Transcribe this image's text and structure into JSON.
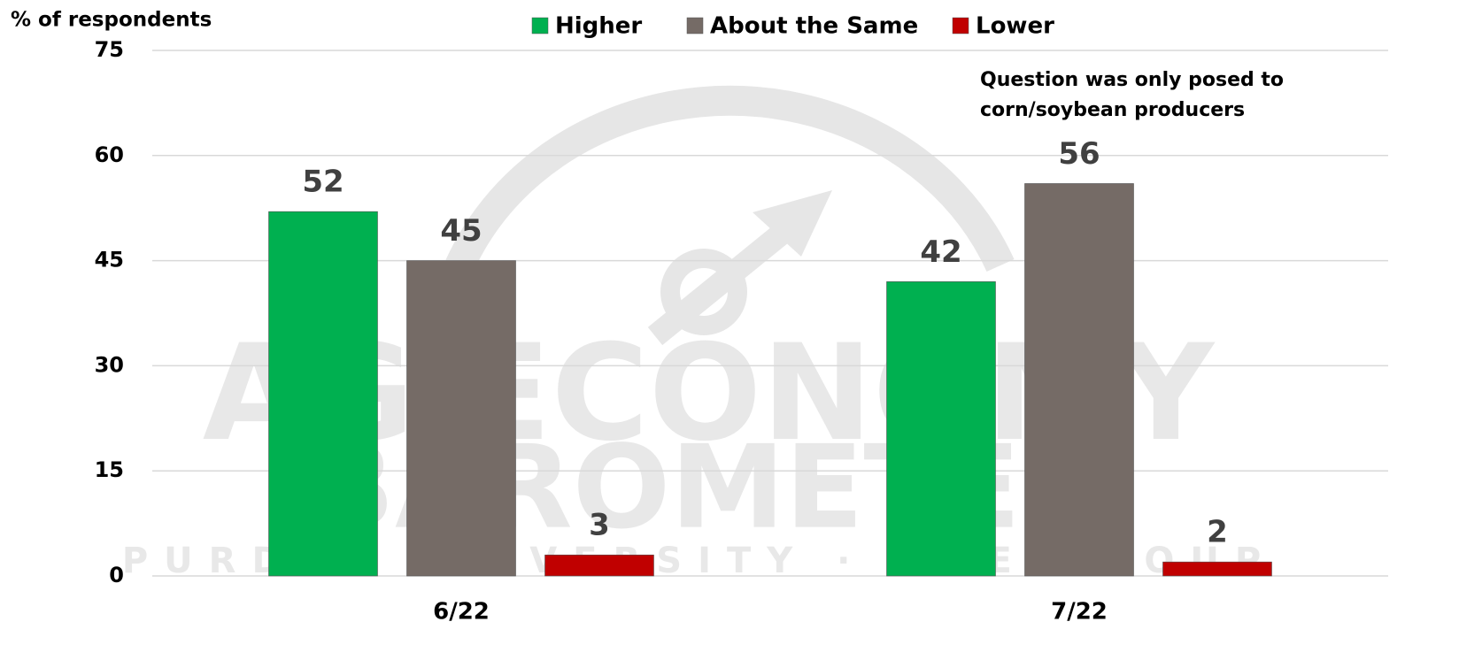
{
  "chart_data": {
    "type": "bar",
    "y_label": "% of respondents",
    "annotation": [
      "Question was only posed to",
      "corn/soybean producers"
    ],
    "watermark": [
      "AG ECONOMY",
      "BAROMETER",
      "PURDUE UNIVERSITY · CME GROUP"
    ],
    "categories": [
      "6/22",
      "7/22"
    ],
    "series": [
      {
        "name": "Higher",
        "color": "#00b050",
        "values": [
          52,
          42
        ]
      },
      {
        "name": "About the Same",
        "color": "#756b66",
        "values": [
          45,
          56
        ]
      },
      {
        "name": "Lower",
        "color": "#c00000",
        "values": [
          3,
          2
        ]
      }
    ],
    "ylim": [
      0,
      75
    ],
    "yticks": [
      0,
      15,
      30,
      45,
      60,
      75
    ],
    "grid": true,
    "legend": "top"
  }
}
